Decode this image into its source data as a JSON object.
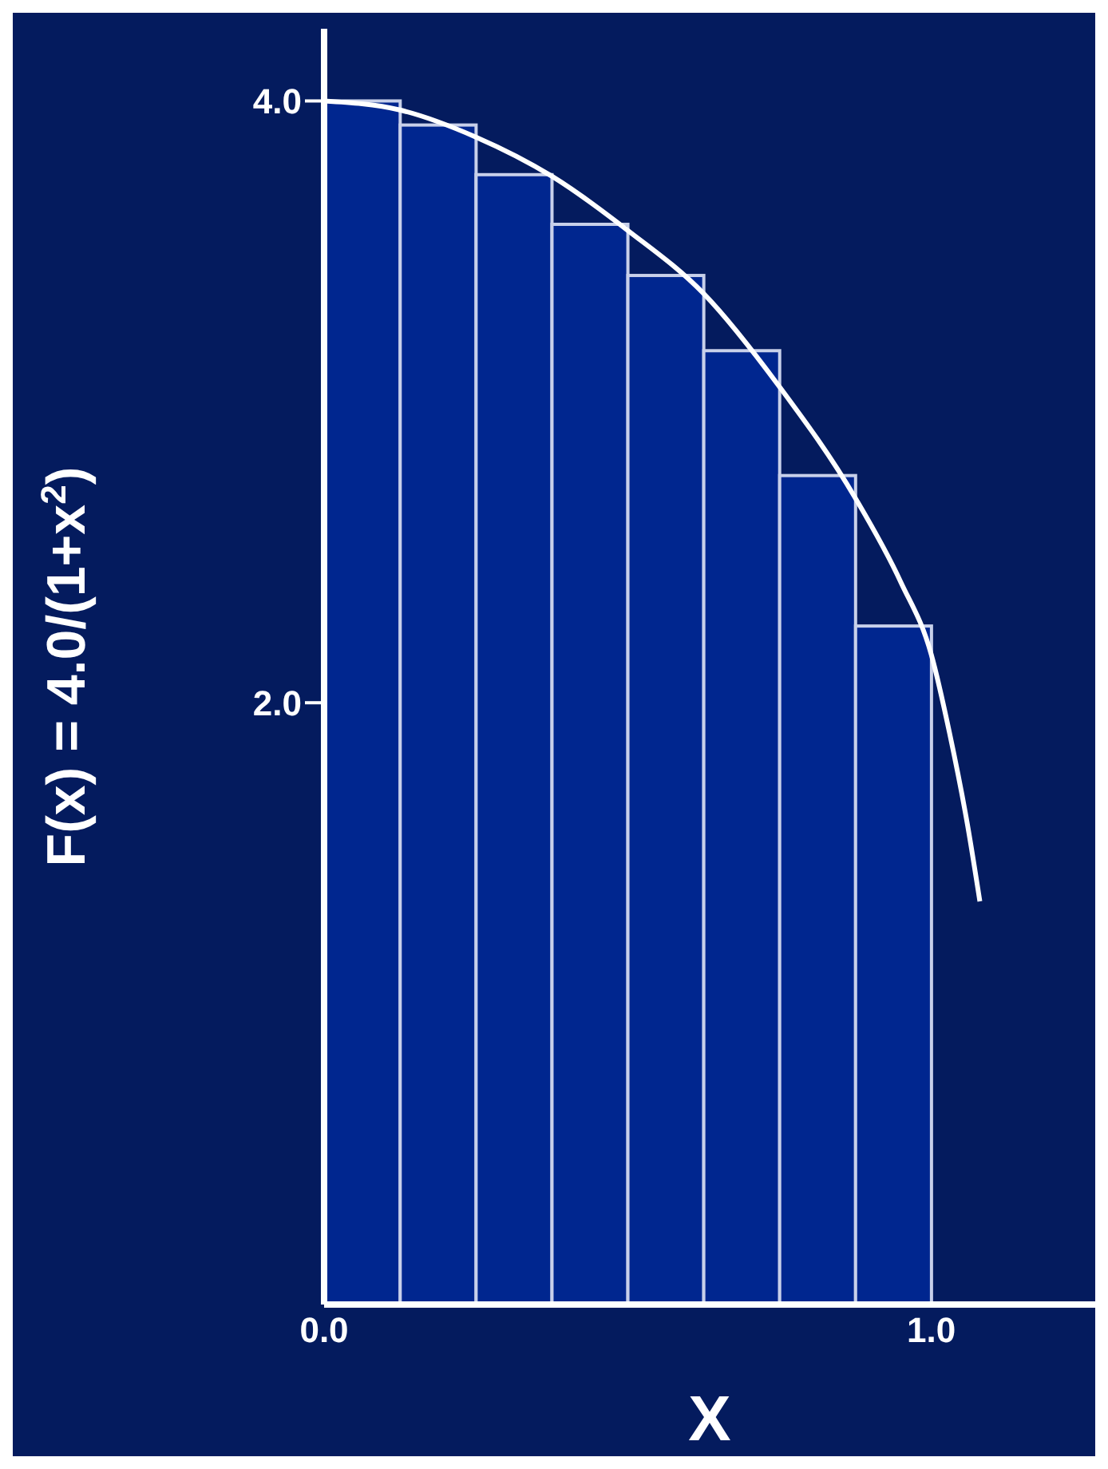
{
  "chart_data": {
    "type": "bar",
    "xlabel": "X",
    "ylabel": "F(x) = 4.0/(1+x$^{2}$)",
    "xlim": [
      0,
      1.27
    ],
    "ylim": [
      0,
      4.24
    ],
    "xticks": [
      {
        "value": 0,
        "label": "0.0"
      },
      {
        "value": 1,
        "label": "1.0"
      }
    ],
    "yticks": [
      {
        "value": 2,
        "label": "2.0"
      },
      {
        "value": 4,
        "label": "4.0"
      }
    ],
    "grid": false,
    "legend": false,
    "series": [
      {
        "color": "#00268f",
        "x": [
          0.0625,
          0.1875,
          0.3125,
          0.4375,
          0.5625,
          0.6875,
          0.8125,
          0.9375
        ],
        "values": [
          4.0,
          3.92,
          3.755,
          3.59,
          3.42,
          3.17,
          2.755,
          2.255
        ]
      },
      {
        "type": "line",
        "color": "#ffffff",
        "x": [
          0,
          0.125,
          0.25,
          0.375,
          0.5,
          0.625,
          0.75,
          0.875,
          0.95,
          1.0,
          1.03,
          1.06,
          1.08
        ],
        "values": [
          4.0,
          3.97,
          3.88,
          3.75,
          3.57,
          3.36,
          3.05,
          2.68,
          2.4,
          2.16,
          1.9,
          1.59,
          1.34
        ]
      }
    ]
  }
}
